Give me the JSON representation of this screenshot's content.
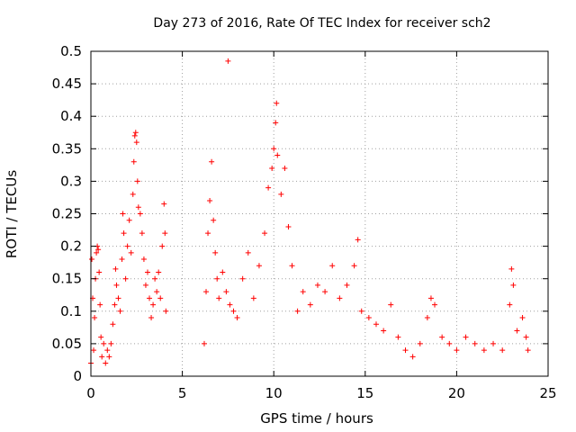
{
  "chart_data": {
    "type": "scatter",
    "title": "Day 273 of 2016, Rate Of TEC Index for receiver sch2",
    "xlabel": "GPS time / hours",
    "ylabel": "ROTI / TECUs",
    "xlim": [
      0,
      25
    ],
    "ylim": [
      0,
      0.5
    ],
    "x_ticks": [
      0,
      5,
      10,
      15,
      20,
      25
    ],
    "x_tick_labels": [
      "0",
      "5",
      "10",
      "15",
      "20",
      "25"
    ],
    "y_ticks": [
      0,
      0.05,
      0.1,
      0.15,
      0.2,
      0.25,
      0.3,
      0.35,
      0.4,
      0.45,
      0.5
    ],
    "y_tick_labels": [
      "0",
      "0.05",
      "0.1",
      "0.15",
      "0.2",
      "0.25",
      "0.3",
      "0.35",
      "0.4",
      "0.45",
      "0.5"
    ],
    "grid": true,
    "marker": "plus",
    "color": "#ff0000",
    "series": [
      {
        "name": "sch2 ROTI",
        "points": [
          [
            0.0,
            0.02
          ],
          [
            0.05,
            0.18
          ],
          [
            0.1,
            0.12
          ],
          [
            0.15,
            0.04
          ],
          [
            0.2,
            0.09
          ],
          [
            0.25,
            0.15
          ],
          [
            0.3,
            0.19
          ],
          [
            0.35,
            0.2
          ],
          [
            0.4,
            0.195
          ],
          [
            0.45,
            0.16
          ],
          [
            0.5,
            0.11
          ],
          [
            0.55,
            0.06
          ],
          [
            0.6,
            0.03
          ],
          [
            0.7,
            0.05
          ],
          [
            0.8,
            0.02
          ],
          [
            0.9,
            0.04
          ],
          [
            1.0,
            0.03
          ],
          [
            1.1,
            0.05
          ],
          [
            1.2,
            0.08
          ],
          [
            1.3,
            0.11
          ],
          [
            1.35,
            0.165
          ],
          [
            1.4,
            0.14
          ],
          [
            1.5,
            0.12
          ],
          [
            1.6,
            0.1
          ],
          [
            1.7,
            0.18
          ],
          [
            1.75,
            0.25
          ],
          [
            1.8,
            0.22
          ],
          [
            1.9,
            0.15
          ],
          [
            2.0,
            0.2
          ],
          [
            2.1,
            0.24
          ],
          [
            2.2,
            0.19
          ],
          [
            2.3,
            0.28
          ],
          [
            2.35,
            0.33
          ],
          [
            2.4,
            0.37
          ],
          [
            2.45,
            0.375
          ],
          [
            2.5,
            0.36
          ],
          [
            2.55,
            0.3
          ],
          [
            2.6,
            0.26
          ],
          [
            2.7,
            0.25
          ],
          [
            2.8,
            0.22
          ],
          [
            2.9,
            0.18
          ],
          [
            3.0,
            0.14
          ],
          [
            3.1,
            0.16
          ],
          [
            3.2,
            0.12
          ],
          [
            3.3,
            0.09
          ],
          [
            3.4,
            0.11
          ],
          [
            3.5,
            0.15
          ],
          [
            3.6,
            0.13
          ],
          [
            3.7,
            0.16
          ],
          [
            3.8,
            0.12
          ],
          [
            3.9,
            0.2
          ],
          [
            4.0,
            0.265
          ],
          [
            4.05,
            0.22
          ],
          [
            4.1,
            0.1
          ],
          [
            6.2,
            0.05
          ],
          [
            6.3,
            0.13
          ],
          [
            6.4,
            0.22
          ],
          [
            6.5,
            0.27
          ],
          [
            6.6,
            0.33
          ],
          [
            6.7,
            0.24
          ],
          [
            6.8,
            0.19
          ],
          [
            6.9,
            0.15
          ],
          [
            7.0,
            0.12
          ],
          [
            7.2,
            0.16
          ],
          [
            7.4,
            0.13
          ],
          [
            7.5,
            0.485
          ],
          [
            7.6,
            0.11
          ],
          [
            7.8,
            0.1
          ],
          [
            8.0,
            0.09
          ],
          [
            8.3,
            0.15
          ],
          [
            8.6,
            0.19
          ],
          [
            8.9,
            0.12
          ],
          [
            9.2,
            0.17
          ],
          [
            9.5,
            0.22
          ],
          [
            9.7,
            0.29
          ],
          [
            9.9,
            0.32
          ],
          [
            10.0,
            0.35
          ],
          [
            10.1,
            0.39
          ],
          [
            10.15,
            0.42
          ],
          [
            10.2,
            0.34
          ],
          [
            10.4,
            0.28
          ],
          [
            10.6,
            0.32
          ],
          [
            10.8,
            0.23
          ],
          [
            11.0,
            0.17
          ],
          [
            11.3,
            0.1
          ],
          [
            11.6,
            0.13
          ],
          [
            12.0,
            0.11
          ],
          [
            12.4,
            0.14
          ],
          [
            12.8,
            0.13
          ],
          [
            13.2,
            0.17
          ],
          [
            13.6,
            0.12
          ],
          [
            14.0,
            0.14
          ],
          [
            14.4,
            0.17
          ],
          [
            14.6,
            0.21
          ],
          [
            14.8,
            0.1
          ],
          [
            15.2,
            0.09
          ],
          [
            15.6,
            0.08
          ],
          [
            16.0,
            0.07
          ],
          [
            16.4,
            0.11
          ],
          [
            16.8,
            0.06
          ],
          [
            17.2,
            0.04
          ],
          [
            17.6,
            0.03
          ],
          [
            18.0,
            0.05
          ],
          [
            18.4,
            0.09
          ],
          [
            18.6,
            0.12
          ],
          [
            18.8,
            0.11
          ],
          [
            19.2,
            0.06
          ],
          [
            19.6,
            0.05
          ],
          [
            20.0,
            0.04
          ],
          [
            20.5,
            0.06
          ],
          [
            21.0,
            0.05
          ],
          [
            21.5,
            0.04
          ],
          [
            22.0,
            0.05
          ],
          [
            22.5,
            0.04
          ],
          [
            22.9,
            0.11
          ],
          [
            23.0,
            0.165
          ],
          [
            23.1,
            0.14
          ],
          [
            23.3,
            0.07
          ],
          [
            23.6,
            0.09
          ],
          [
            23.8,
            0.06
          ],
          [
            23.9,
            0.04
          ]
        ]
      }
    ]
  }
}
